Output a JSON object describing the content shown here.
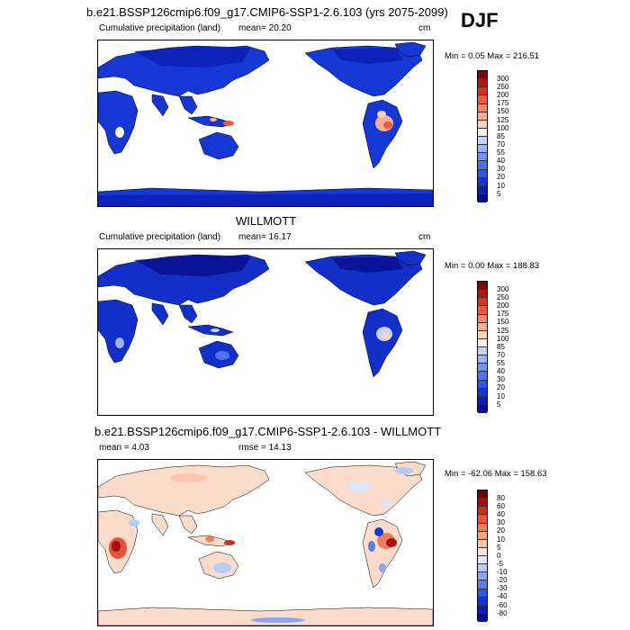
{
  "main_title": "b.e21.BSSP126cmip6.f09_g17.CMIP6-SSP1-2.6.103 (yrs 2075-2099)",
  "season": "DJF",
  "panels": [
    {
      "id": "model",
      "heading": "",
      "variable": "Cumulative precipitation (land)",
      "mean_label": "mean=  20.20",
      "units": "cm",
      "minmax": "Min =   0.05 Max = 216.51",
      "colorbar_labels": [
        "300",
        "250",
        "200",
        "175",
        "150",
        "125",
        "100",
        "85",
        "70",
        "55",
        "40",
        "30",
        "20",
        "10",
        "5"
      ]
    },
    {
      "id": "obs",
      "heading": "WILLMOTT",
      "variable": "Cumulative precipitation (land)",
      "mean_label": "mean=  16.17",
      "units": "cm",
      "minmax": "Min =   0.00 Max = 188.83",
      "colorbar_labels": [
        "300",
        "250",
        "200",
        "175",
        "150",
        "125",
        "100",
        "85",
        "70",
        "55",
        "40",
        "30",
        "20",
        "10",
        "5"
      ]
    },
    {
      "id": "diff",
      "heading": "b.e21.BSSP126cmip6.f09_g17.CMIP6-SSP1-2.6.103 - WILLMOTT",
      "mean_label": "mean =    4.03",
      "rmse_label": "rmse =  14.13",
      "minmax": "Min = -62.06 Max = 158.63",
      "colorbar_labels": [
        "80",
        "60",
        "40",
        "30",
        "20",
        "10",
        "5",
        "0",
        "-5",
        "-10",
        "-20",
        "-30",
        "-40",
        "-60",
        "-80"
      ]
    }
  ],
  "colors": {
    "precip_scale": [
      "#0a0d8c",
      "#0b1fb3",
      "#1236d6",
      "#2f55e8",
      "#4e73f0",
      "#7394f4",
      "#9db3f8",
      "#c6d4fb",
      "#f6f0e6",
      "#fbd2bf",
      "#f9ae8f",
      "#f4876a",
      "#ea5a3e",
      "#d8321d",
      "#b31410",
      "#7d0505"
    ],
    "diff_scale": [
      "#0a0d8c",
      "#0b1fb3",
      "#1236d6",
      "#2f55e8",
      "#5a7ef0",
      "#8aa6f6",
      "#b8cbfa",
      "#dce6fc",
      "#fde3d3",
      "#fbc6a9",
      "#f7a37f",
      "#ef7c58",
      "#e2553a",
      "#c92f1d",
      "#a31210",
      "#6e0404"
    ],
    "land_model": "#1538d4",
    "land_obs": "#1230c8",
    "land_diff": "#fbdccb"
  }
}
